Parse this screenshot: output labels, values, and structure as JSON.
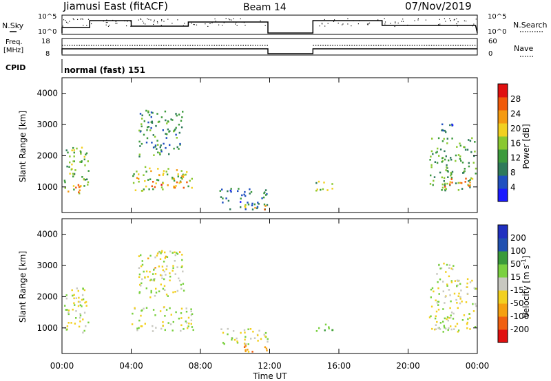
{
  "header": {
    "title": "Jiamusi East (fitACF)",
    "beam": "Beam 14",
    "date": "07/Nov/2019"
  },
  "summary_panels": {
    "nsky_label": "N.Sky",
    "nsky_ticks": [
      "10^5",
      "10^0"
    ],
    "nsearch_label": "N.Search",
    "nsearch_ticks": [
      "10^5",
      "10^0"
    ],
    "freq_label": "Freq.",
    "freq_unit": "[MHz]",
    "freq_ticks": [
      "18",
      "8"
    ],
    "nave_label": "Nave",
    "nave_ticks": [
      "60",
      "0"
    ],
    "cpid_label": "CPID",
    "cpid_value": "normal (fast) 151"
  },
  "colors": {
    "power_scale": [
      "#1a1aff",
      "#2050c0",
      "#2e7a5a",
      "#3c9a3c",
      "#8ac830",
      "#f2d020",
      "#f59a10",
      "#f05a0a",
      "#e01010"
    ],
    "velocity_scale": [
      "#2030c0",
      "#2050b0",
      "#3a9a3a",
      "#7ad040",
      "#c8c8c0",
      "#f2d020",
      "#f5a010",
      "#f06010",
      "#e01010"
    ]
  },
  "chart_data": [
    {
      "type": "heatmap",
      "name": "power",
      "xlabel": "",
      "ylabel": "Slant Range [km]",
      "y_ticks": [
        "1000",
        "2000",
        "3000",
        "4000"
      ],
      "x_ticks": [
        "00:00",
        "04:00",
        "08:00",
        "12:00",
        "16:00",
        "20:00",
        "00:00"
      ],
      "colorbar_label": "Power [dB]",
      "colorbar_ticks": [
        "4",
        "8",
        "12",
        "16",
        "20",
        "24",
        "28"
      ],
      "xlim_hours": [
        0,
        24
      ],
      "ylim_km": [
        180,
        4500
      ],
      "clim": [
        0,
        30
      ],
      "regions": [
        {
          "t": [
            0.1,
            1.5
          ],
          "r": [
            800,
            2300
          ],
          "v": 14
        },
        {
          "t": [
            0.1,
            1.2
          ],
          "r": [
            850,
            1100
          ],
          "v": 24
        },
        {
          "t": [
            4.0,
            7.6
          ],
          "r": [
            900,
            1700
          ],
          "v": 16
        },
        {
          "t": [
            4.4,
            7.2
          ],
          "r": [
            1000,
            1200
          ],
          "v": 22
        },
        {
          "t": [
            4.4,
            7.0
          ],
          "r": [
            2000,
            3500
          ],
          "v": 10
        },
        {
          "t": [
            9.0,
            11.9
          ],
          "r": [
            250,
            1000
          ],
          "v": 8
        },
        {
          "t": [
            10.5,
            11.9
          ],
          "r": [
            250,
            500
          ],
          "v": 20
        },
        {
          "t": [
            14.5,
            15.6
          ],
          "r": [
            900,
            1200
          ],
          "v": 14
        },
        {
          "t": [
            21.2,
            23.9
          ],
          "r": [
            900,
            2600
          ],
          "v": 12
        },
        {
          "t": [
            22.0,
            23.8
          ],
          "r": [
            1000,
            1300
          ],
          "v": 22
        },
        {
          "t": [
            21.6,
            22.6
          ],
          "r": [
            2600,
            3100
          ],
          "v": 8
        }
      ]
    },
    {
      "type": "heatmap",
      "name": "velocity",
      "xlabel": "Time UT",
      "ylabel": "Slant Range [km]",
      "y_ticks": [
        "1000",
        "2000",
        "3000",
        "4000"
      ],
      "x_ticks": [
        "00:00",
        "04:00",
        "08:00",
        "12:00",
        "16:00",
        "20:00",
        "00:00"
      ],
      "colorbar_label": "Velocity [m s^-1]",
      "colorbar_ticks": [
        "200",
        "100",
        "50",
        "15",
        "-15",
        "-50",
        "-100",
        "-200"
      ],
      "xlim_hours": [
        0,
        24
      ],
      "ylim_km": [
        180,
        4500
      ],
      "clim": [
        -250,
        250
      ],
      "regions": [
        {
          "t": [
            0.1,
            1.5
          ],
          "r": [
            800,
            2300
          ],
          "v": 0
        },
        {
          "t": [
            4.0,
            7.6
          ],
          "r": [
            900,
            1700
          ],
          "v": 0
        },
        {
          "t": [
            4.4,
            7.0
          ],
          "r": [
            2000,
            3500
          ],
          "v": -10
        },
        {
          "t": [
            9.0,
            11.9
          ],
          "r": [
            500,
            1000
          ],
          "v": 0
        },
        {
          "t": [
            10.5,
            11.9
          ],
          "r": [
            250,
            500
          ],
          "v": -70
        },
        {
          "t": [
            14.5,
            15.6
          ],
          "r": [
            900,
            1200
          ],
          "v": 60
        },
        {
          "t": [
            21.2,
            23.9
          ],
          "r": [
            900,
            2600
          ],
          "v": 0
        },
        {
          "t": [
            21.6,
            22.6
          ],
          "r": [
            2600,
            3100
          ],
          "v": 5
        }
      ]
    }
  ]
}
